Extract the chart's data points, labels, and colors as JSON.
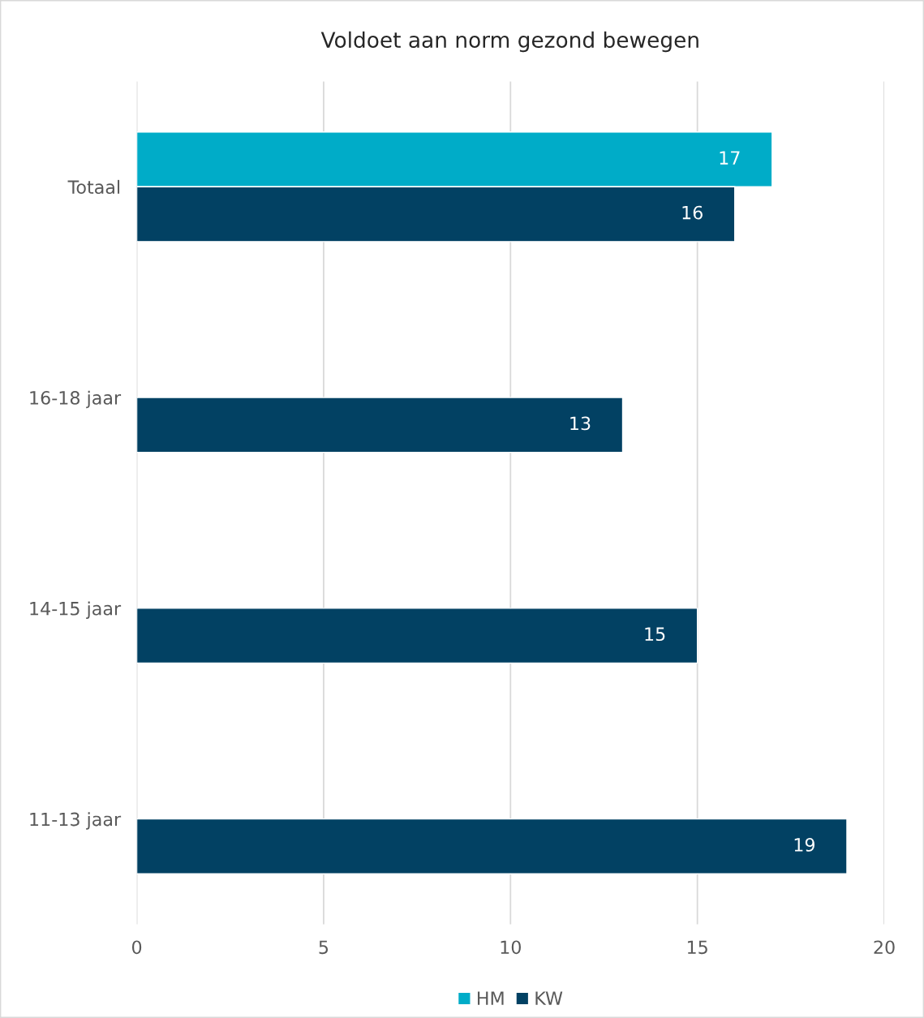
{
  "chart_data": {
    "type": "bar",
    "orientation": "horizontal",
    "title": "Voldoet aan norm gezond bewegen",
    "categories": [
      "Totaal",
      "16-18 jaar",
      "14-15 jaar",
      "11-13 jaar"
    ],
    "series": [
      {
        "name": "HM",
        "color": "#00acc8",
        "values": [
          17,
          null,
          null,
          null
        ]
      },
      {
        "name": "KW",
        "color": "#024163",
        "values": [
          16,
          13,
          15,
          19
        ]
      }
    ],
    "xlim": [
      0,
      20
    ],
    "xticks": [
      0,
      5,
      10,
      15,
      20
    ],
    "grid": "x",
    "legend": "bottom",
    "data_labels": true
  }
}
